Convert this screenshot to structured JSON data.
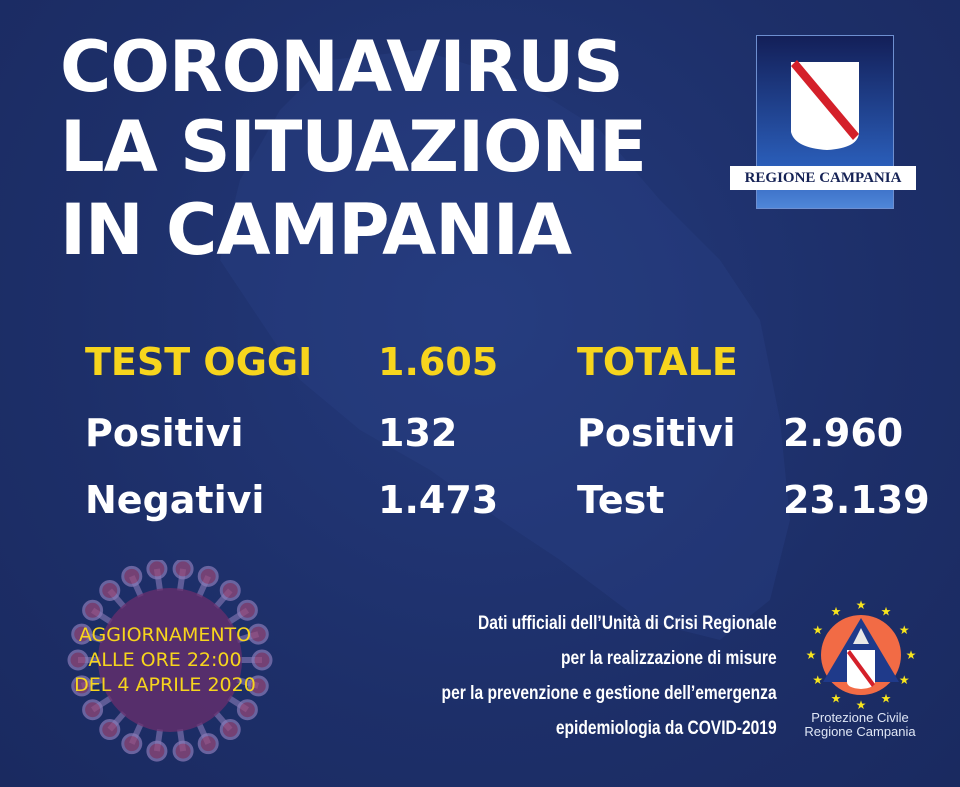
{
  "title": {
    "line1": "CORONAVIRUS",
    "line2": "LA SITUAZIONE",
    "line3": "IN CAMPANIA"
  },
  "today": {
    "label": "TEST OGGI",
    "value": "1.605",
    "positive_label": "Positivi",
    "positive_value": "132",
    "negative_label": "Negativi",
    "negative_value": "1.473"
  },
  "total": {
    "label": "TOTALE",
    "positive_label": "Positivi",
    "positive_value": "2.960",
    "test_label": "Test",
    "test_value": "23.139"
  },
  "update": {
    "line1": "AGGIORNAMENTO",
    "line2": "ALLE ORE 22:00",
    "line3": "DEL 4 APRILE 2020"
  },
  "source": {
    "line1": "Dati ufficiali dell’Unità di Crisi Regionale",
    "line2": "per la realizzazione di misure",
    "line3": "per la prevenzione e gestione dell’emergenza",
    "line4": "epidemiologia da COVID-2019"
  },
  "logos": {
    "region": "REGIONE CAMPANIA",
    "civil_protection_line1": "Protezione Civile",
    "civil_protection_line2": "Regione Campania"
  },
  "colors": {
    "background": "#1d2f69",
    "highlight": "#f7d51d",
    "text": "#ffffff",
    "stripe": "#d4202a",
    "civil_orange": "#f26b45"
  }
}
